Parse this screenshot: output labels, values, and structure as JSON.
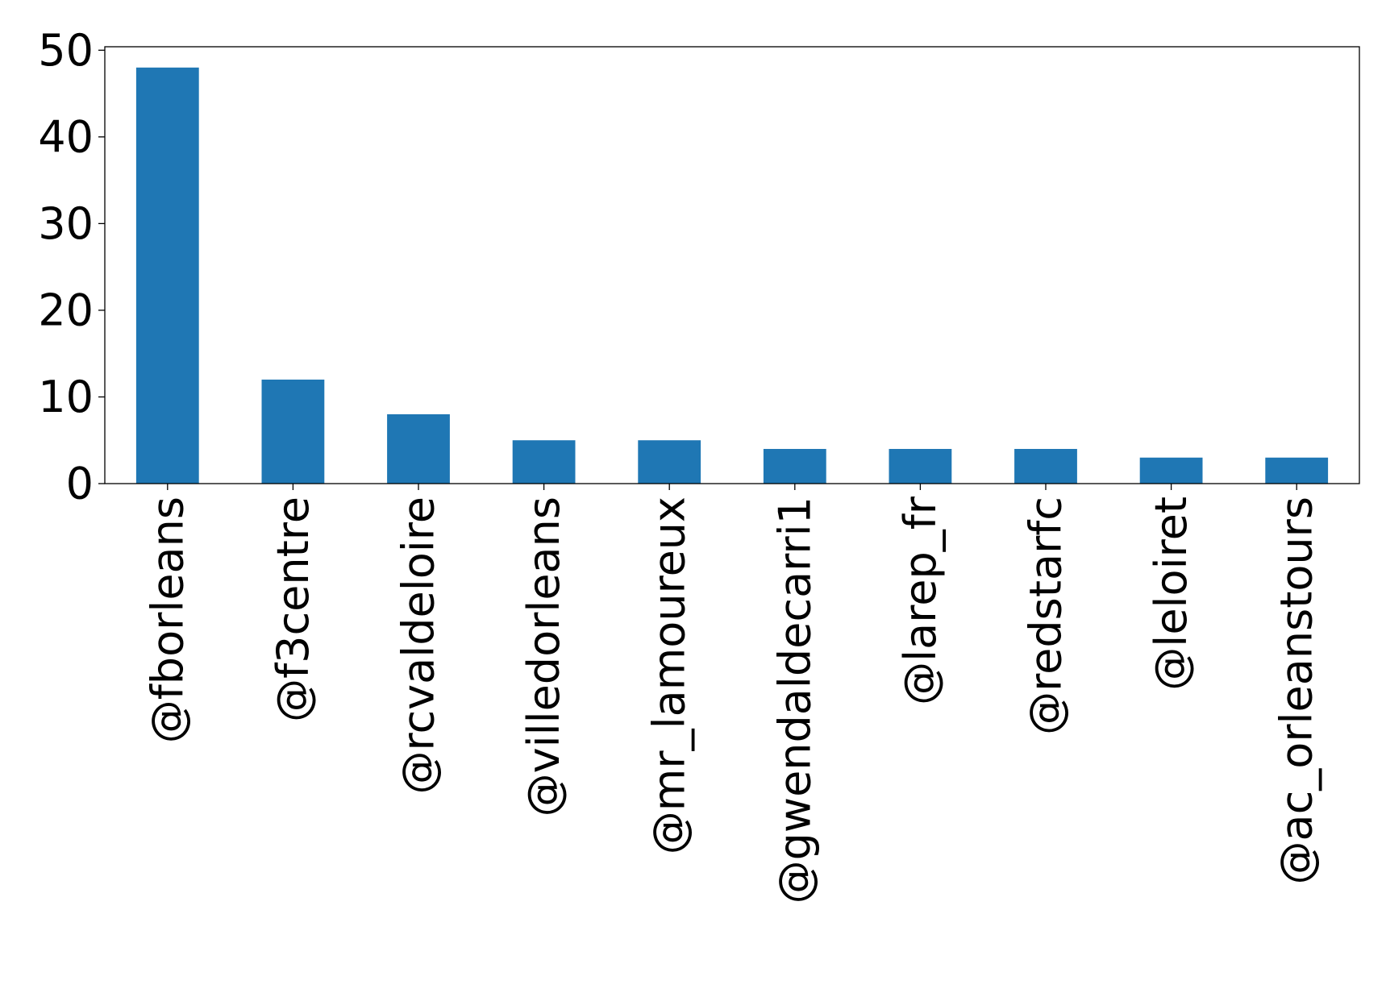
{
  "chart_data": {
    "type": "bar",
    "title": "",
    "xlabel": "",
    "ylabel": "",
    "categories": [
      "@fborleans",
      "@f3centre",
      "@rcvaldeloire",
      "@villedorleans",
      "@mr_lamoureux",
      "@gwendaldecarri1",
      "@larep_fr",
      "@redstarfc",
      "@leloiret",
      "@ac_orleanstours"
    ],
    "values": [
      48,
      12,
      8,
      5,
      5,
      4,
      4,
      4,
      3,
      3
    ],
    "ylim": [
      0,
      50.4
    ],
    "yticks": [
      "0",
      "10",
      "20",
      "30",
      "40",
      "50"
    ],
    "bar_color": "#1f77b4",
    "grid": false,
    "legend": "none"
  }
}
